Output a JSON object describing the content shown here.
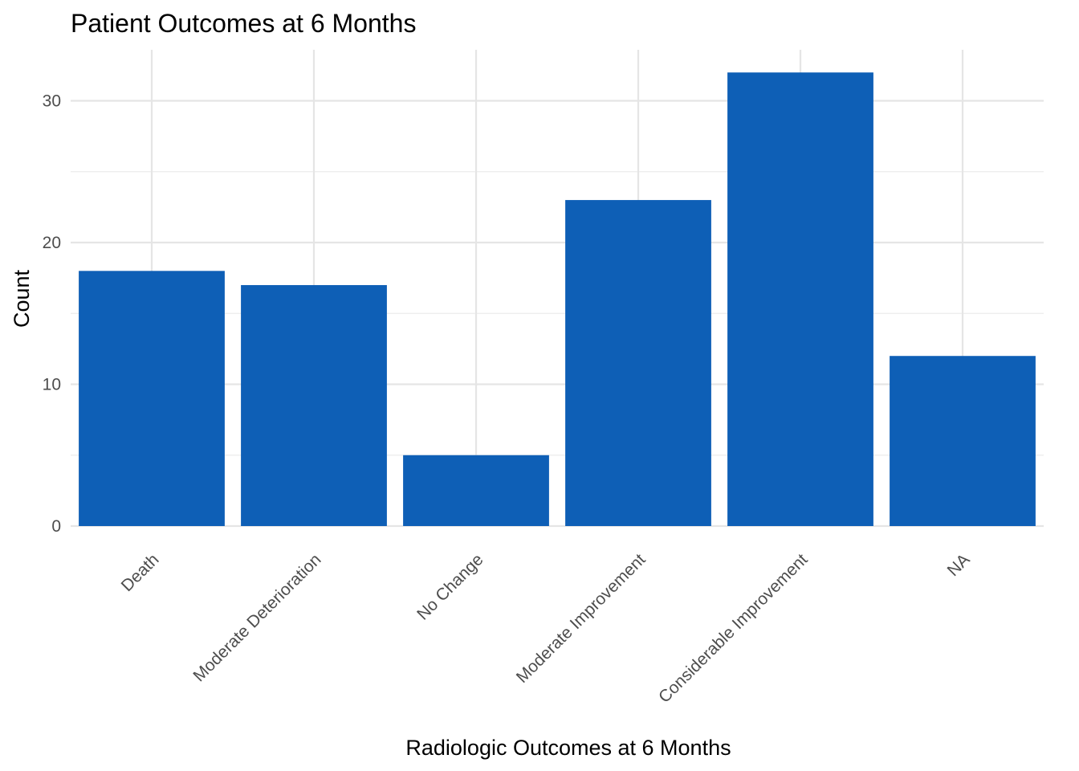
{
  "chart_data": {
    "type": "bar",
    "title": "Patient Outcomes at 6 Months",
    "xlabel": "Radiologic Outcomes at 6 Months",
    "ylabel": "Count",
    "categories": [
      "Death",
      "Moderate Deterioration",
      "No Change",
      "Moderate Improvement",
      "Considerable Improvement",
      "NA"
    ],
    "values": [
      18,
      17,
      5,
      23,
      32,
      12
    ],
    "ylim": [
      0,
      33.6
    ],
    "yticks": [
      0,
      10,
      20,
      30
    ],
    "y_minor_ticks": [
      5,
      15,
      25
    ],
    "grid": true,
    "legend": "none",
    "bar_color": "#0e5fb6"
  }
}
